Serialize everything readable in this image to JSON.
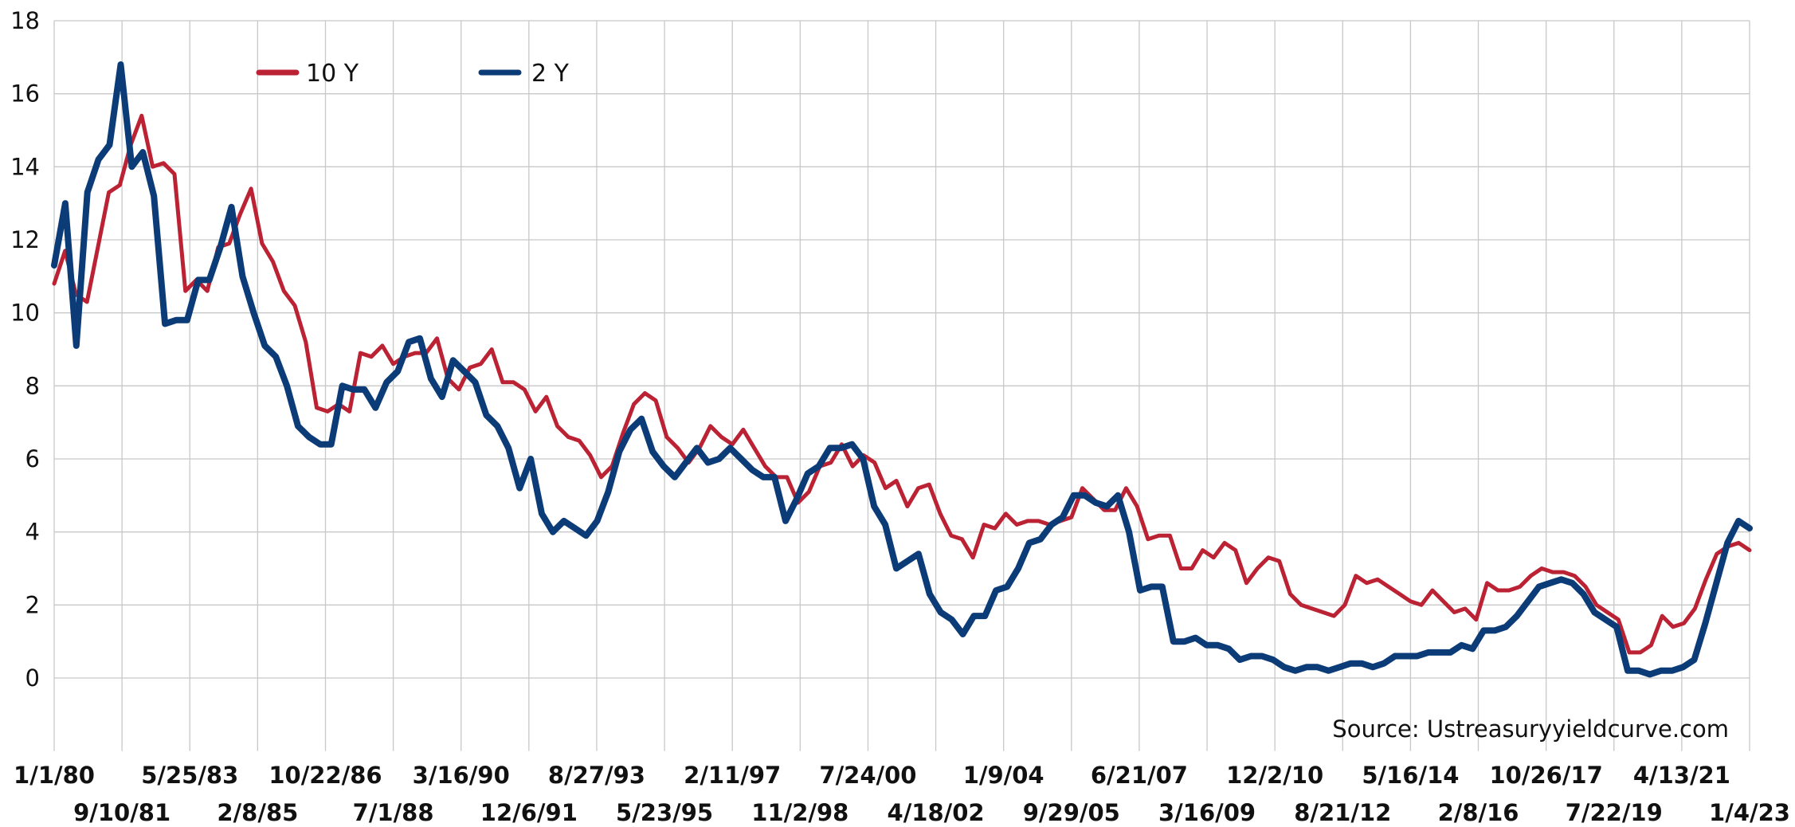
{
  "chart_data": {
    "type": "line",
    "title": "",
    "xlabel": "",
    "ylabel": "",
    "ylim": [
      -2,
      18
    ],
    "y_ticks": [
      0,
      2,
      4,
      6,
      8,
      10,
      12,
      14,
      16,
      18
    ],
    "x_tick_labels_row1": [
      "1/1/80",
      "5/25/83",
      "10/22/86",
      "3/16/90",
      "8/27/93",
      "2/11/97",
      "7/24/00",
      "1/9/04",
      "6/21/07",
      "12/2/10",
      "5/16/14",
      "10/26/17",
      "4/13/21"
    ],
    "x_tick_labels_row2": [
      "9/10/81",
      "2/8/85",
      "7/1/88",
      "12/6/91",
      "5/23/95",
      "11/2/98",
      "4/18/02",
      "9/29/05",
      "3/16/09",
      "8/21/12",
      "2/8/16",
      "7/22/19",
      "1/4/23"
    ],
    "grid": true,
    "legend_position": "top-left",
    "source": "Source: Ustreasuryyieldcurve.com",
    "series": [
      {
        "name": "10 Y",
        "color": "#bb2233",
        "values": [
          10.8,
          11.7,
          10.5,
          10.3,
          11.8,
          13.3,
          13.5,
          14.6,
          15.4,
          14.0,
          14.1,
          13.8,
          10.6,
          10.9,
          10.6,
          11.8,
          11.9,
          12.7,
          13.4,
          11.9,
          11.4,
          10.6,
          10.2,
          9.2,
          7.4,
          7.3,
          7.5,
          7.3,
          8.9,
          8.8,
          9.1,
          8.6,
          8.8,
          8.9,
          8.9,
          9.3,
          8.2,
          7.9,
          8.5,
          8.6,
          9.0,
          8.1,
          8.1,
          7.9,
          7.3,
          7.7,
          6.9,
          6.6,
          6.5,
          6.1,
          5.5,
          5.8,
          6.7,
          7.5,
          7.8,
          7.6,
          6.6,
          6.3,
          5.9,
          6.3,
          6.9,
          6.6,
          6.4,
          6.8,
          6.3,
          5.8,
          5.5,
          5.5,
          4.8,
          5.1,
          5.8,
          5.9,
          6.4,
          5.8,
          6.1,
          5.9,
          5.2,
          5.4,
          4.7,
          5.2,
          5.3,
          4.5,
          3.9,
          3.8,
          3.3,
          4.2,
          4.1,
          4.5,
          4.2,
          4.3,
          4.3,
          4.2,
          4.3,
          4.4,
          5.2,
          4.9,
          4.6,
          4.6,
          5.2,
          4.7,
          3.8,
          3.9,
          3.9,
          3.0,
          3.0,
          3.5,
          3.3,
          3.7,
          3.5,
          2.6,
          3.0,
          3.3,
          3.2,
          2.3,
          2.0,
          1.9,
          1.8,
          1.7,
          2.0,
          2.8,
          2.6,
          2.7,
          2.5,
          2.3,
          2.1,
          2.0,
          2.4,
          2.1,
          1.8,
          1.9,
          1.6,
          2.6,
          2.4,
          2.4,
          2.5,
          2.8,
          3.0,
          2.9,
          2.9,
          2.8,
          2.5,
          2.0,
          1.8,
          1.6,
          0.7,
          0.7,
          0.9,
          1.7,
          1.4,
          1.5,
          1.9,
          2.7,
          3.4,
          3.6,
          3.7,
          3.5
        ]
      },
      {
        "name": "2 Y",
        "color": "#0b3c78",
        "values": [
          11.3,
          13.0,
          9.1,
          13.3,
          14.2,
          14.6,
          16.8,
          14.0,
          14.4,
          13.2,
          9.7,
          9.8,
          9.8,
          10.9,
          10.9,
          11.8,
          12.9,
          11.0,
          10.0,
          9.1,
          8.8,
          8.0,
          6.9,
          6.6,
          6.4,
          6.4,
          8.0,
          7.9,
          7.9,
          7.4,
          8.1,
          8.4,
          9.2,
          9.3,
          8.2,
          7.7,
          8.7,
          8.4,
          8.1,
          7.2,
          6.9,
          6.3,
          5.2,
          6.0,
          4.5,
          4.0,
          4.3,
          4.1,
          3.9,
          4.3,
          5.1,
          6.2,
          6.8,
          7.1,
          6.2,
          5.8,
          5.5,
          5.9,
          6.3,
          5.9,
          6.0,
          6.3,
          6.0,
          5.7,
          5.5,
          5.5,
          4.3,
          4.9,
          5.6,
          5.8,
          6.3,
          6.3,
          6.4,
          6.0,
          4.7,
          4.2,
          3.0,
          3.2,
          3.4,
          2.3,
          1.8,
          1.6,
          1.2,
          1.7,
          1.7,
          2.4,
          2.5,
          3.0,
          3.7,
          3.8,
          4.2,
          4.4,
          5.0,
          5.0,
          4.8,
          4.7,
          5.0,
          4.0,
          2.4,
          2.5,
          2.5,
          1.0,
          1.0,
          1.1,
          0.9,
          0.9,
          0.8,
          0.5,
          0.6,
          0.6,
          0.5,
          0.3,
          0.2,
          0.3,
          0.3,
          0.2,
          0.3,
          0.4,
          0.4,
          0.3,
          0.4,
          0.6,
          0.6,
          0.6,
          0.7,
          0.7,
          0.7,
          0.9,
          0.8,
          1.3,
          1.3,
          1.4,
          1.7,
          2.1,
          2.5,
          2.6,
          2.7,
          2.6,
          2.3,
          1.8,
          1.6,
          1.4,
          0.2,
          0.2,
          0.1,
          0.2,
          0.2,
          0.3,
          0.5,
          1.5,
          2.6,
          3.7,
          4.3,
          4.1
        ]
      }
    ]
  }
}
